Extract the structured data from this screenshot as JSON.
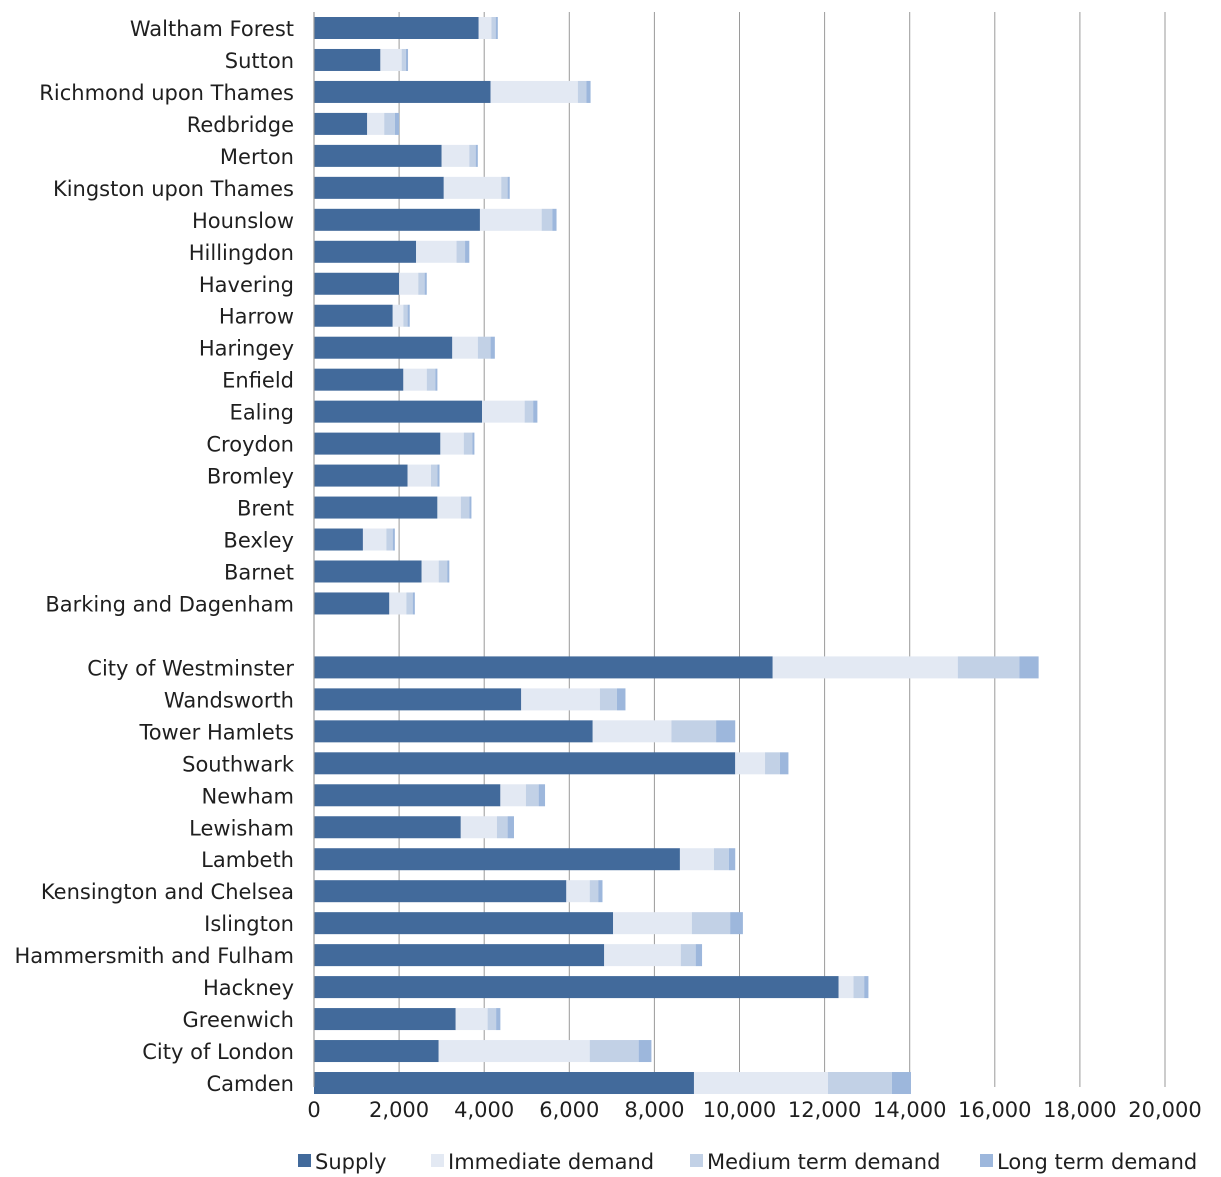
{
  "chart_data": {
    "type": "bar",
    "orientation": "horizontal",
    "stacked": true,
    "categories": [
      "Waltham Forest",
      "Sutton",
      "Richmond upon Thames",
      "Redbridge",
      "Merton",
      "Kingston upon Thames",
      "Hounslow",
      "Hillingdon",
      "Havering",
      "Harrow",
      "Haringey",
      "Enfield",
      "Ealing",
      "Croydon",
      "Bromley",
      "Brent",
      "Bexley",
      "Barnet",
      "Barking and Dagenham",
      "",
      "City of Westminster",
      "Wandsworth",
      "Tower Hamlets",
      "Southwark",
      "Newham",
      "Lewisham",
      "Lambeth",
      "Kensington and Chelsea",
      "Islington",
      "Hammersmith and Fulham",
      "Hackney",
      "Greenwich",
      "City of London",
      "Camden"
    ],
    "series": [
      {
        "name": "Supply",
        "color": "#426a9b",
        "values": [
          3870,
          1560,
          4150,
          1250,
          3000,
          3050,
          3900,
          2400,
          2000,
          1850,
          3250,
          2100,
          3950,
          2970,
          2200,
          2900,
          1150,
          2530,
          1770,
          null,
          10780,
          4870,
          6550,
          9900,
          4380,
          3450,
          8600,
          5930,
          7030,
          6820,
          12330,
          3330,
          2930,
          8930
        ]
      },
      {
        "name": "Immediate demand",
        "color": "#e3e9f3",
        "values": [
          300,
          500,
          2050,
          400,
          650,
          1350,
          1450,
          950,
          450,
          250,
          600,
          550,
          1000,
          550,
          550,
          550,
          550,
          400,
          400,
          null,
          4350,
          1850,
          1850,
          700,
          600,
          850,
          800,
          550,
          1850,
          1800,
          350,
          750,
          3550,
          3150
        ]
      },
      {
        "name": "Medium term demand",
        "color": "#c2d1e6",
        "values": [
          100,
          100,
          200,
          250,
          150,
          150,
          250,
          200,
          150,
          100,
          300,
          200,
          200,
          200,
          150,
          200,
          150,
          200,
          150,
          null,
          1450,
          400,
          1050,
          350,
          300,
          250,
          350,
          200,
          900,
          350,
          250,
          200,
          1150,
          1500
        ]
      },
      {
        "name": "Long term demand",
        "color": "#9db7dc",
        "values": [
          50,
          50,
          100,
          100,
          50,
          50,
          100,
          100,
          50,
          50,
          100,
          50,
          100,
          50,
          50,
          50,
          50,
          50,
          50,
          null,
          450,
          200,
          450,
          200,
          150,
          150,
          150,
          100,
          300,
          150,
          100,
          100,
          300,
          450
        ]
      }
    ],
    "x_ticks": [
      "0",
      "2,000",
      "4,000",
      "6,000",
      "8,000",
      "10,000",
      "12,000",
      "14,000",
      "16,000",
      "18,000",
      "20,000"
    ],
    "xlim": [
      0,
      20000
    ],
    "title": "",
    "xlabel": "",
    "ylabel": "",
    "grid": "vertical",
    "legend": "bottom"
  }
}
